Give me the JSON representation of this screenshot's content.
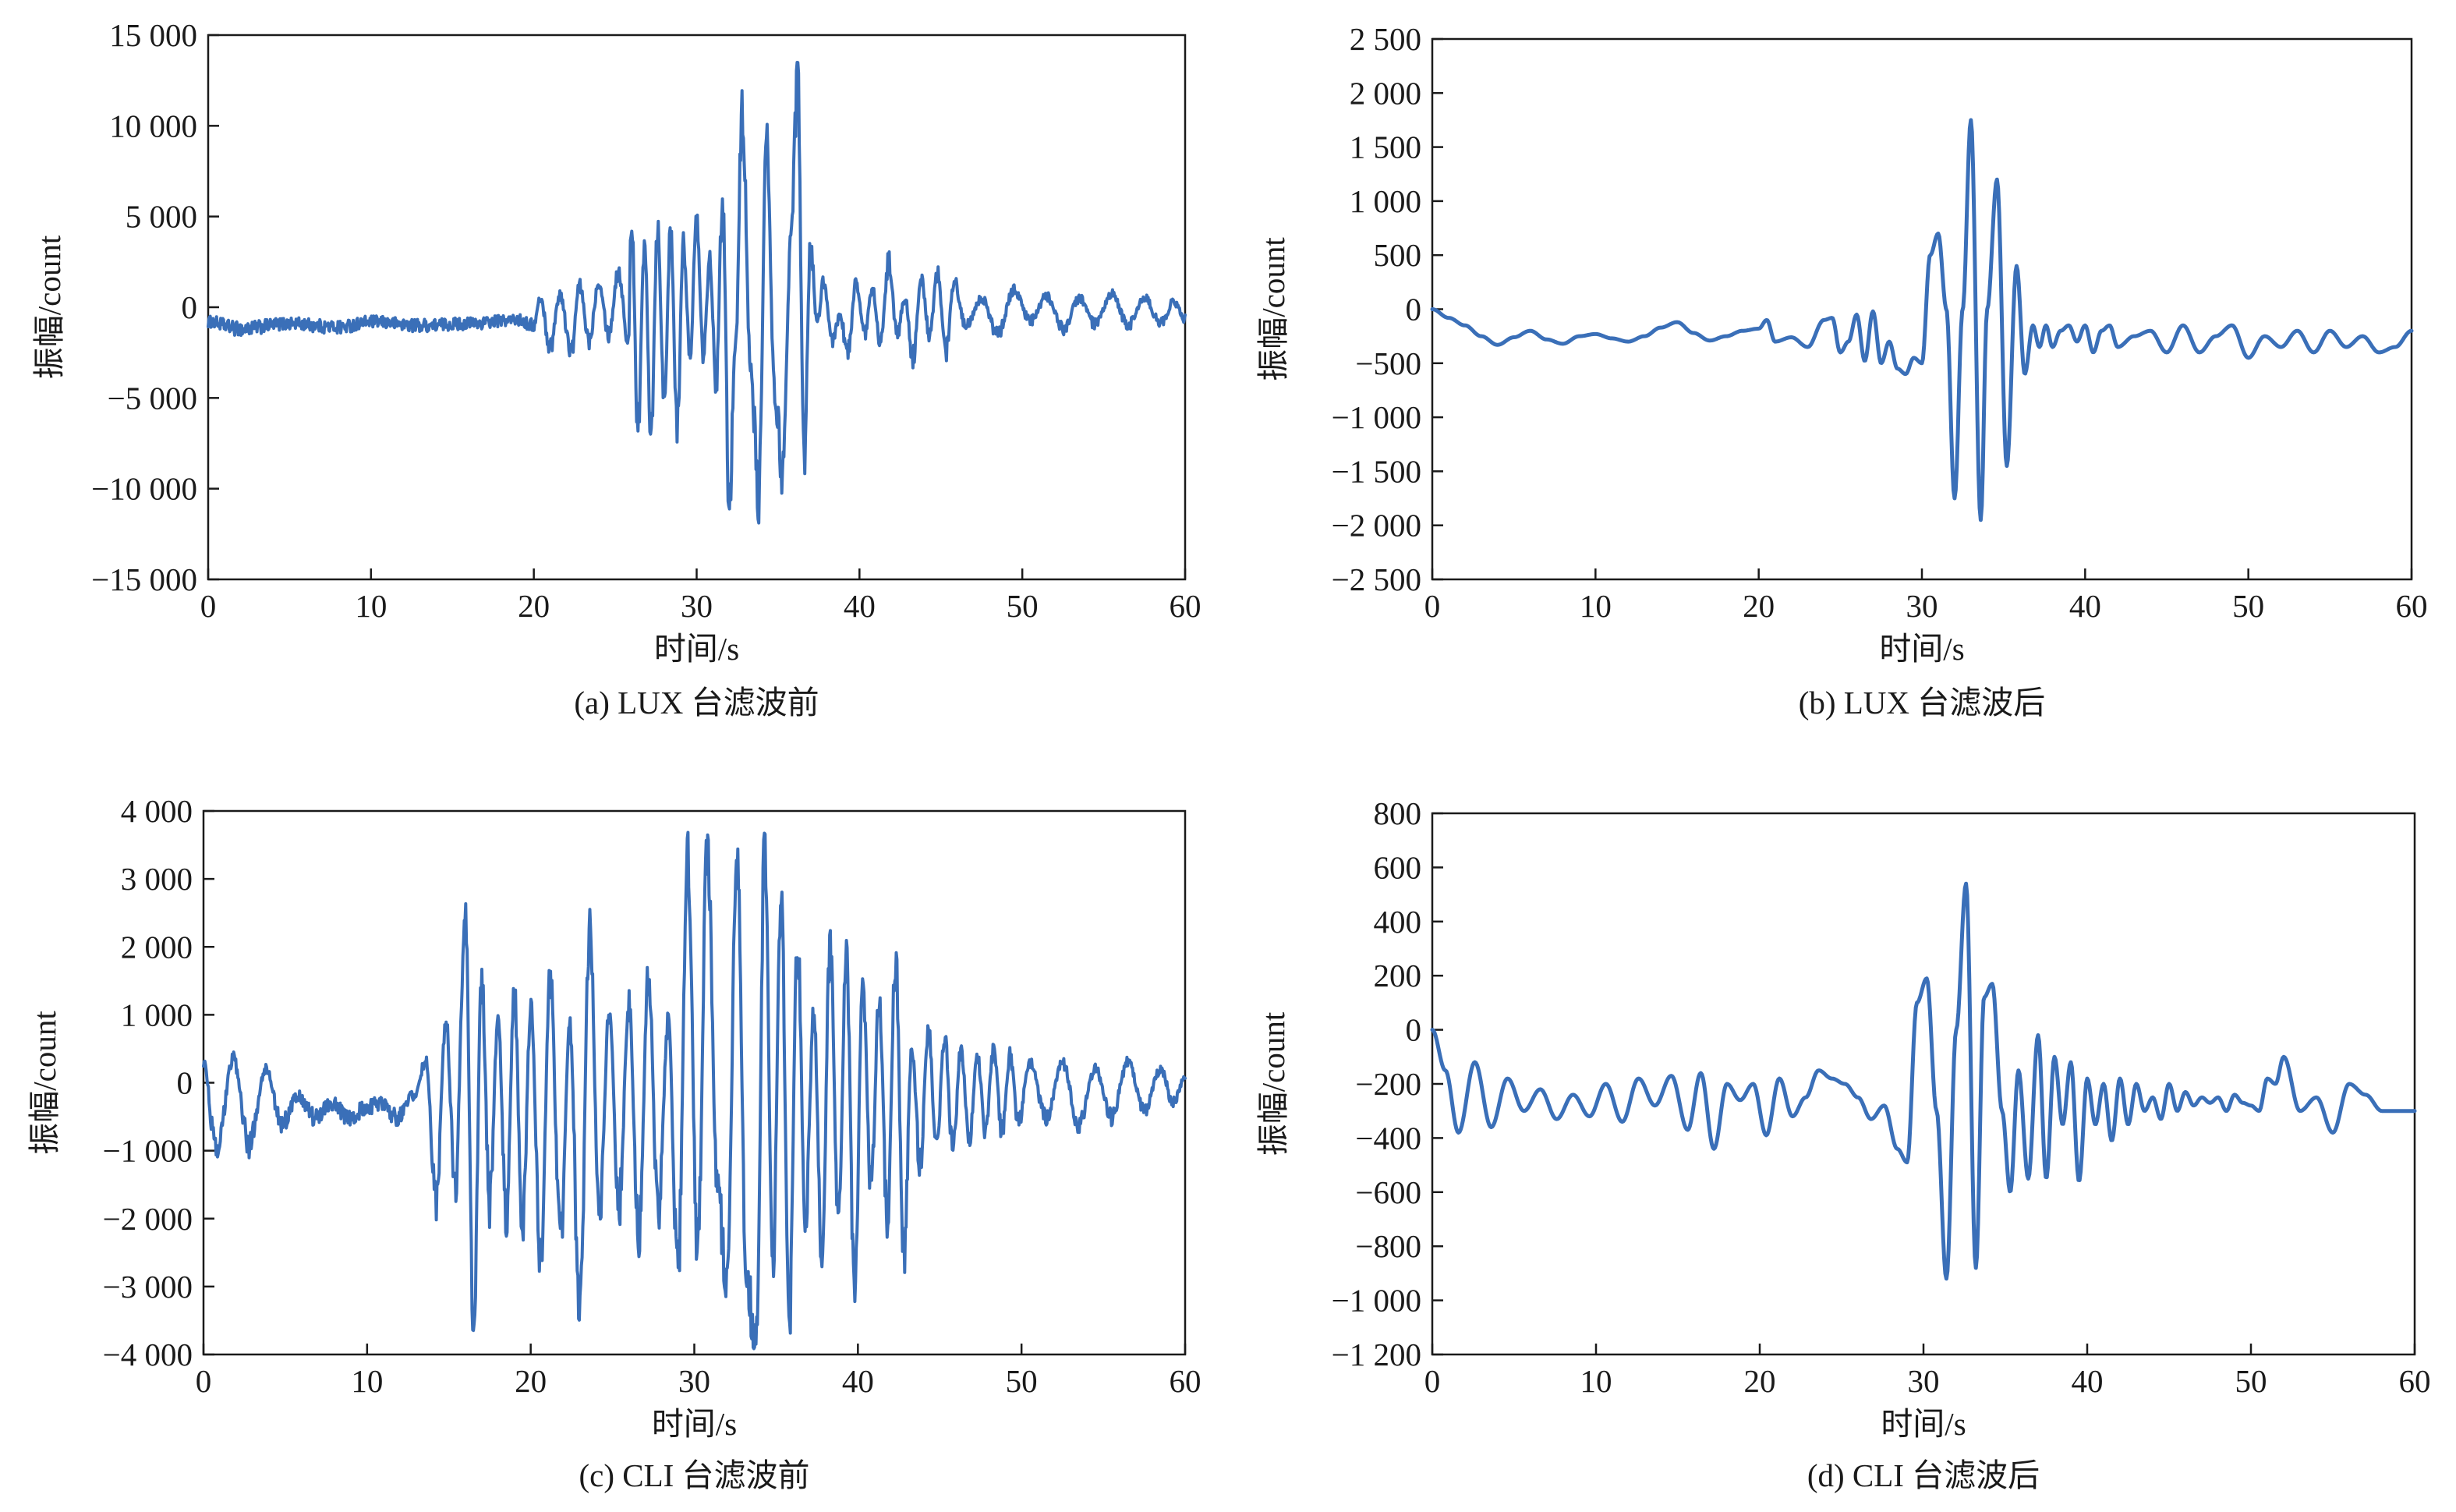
{
  "colors": {
    "trace": "#3a6fb8",
    "axis": "#1a1a1a"
  },
  "chart_data": [
    {
      "type": "line",
      "id": "a",
      "caption": "(a) LUX 台滤波前",
      "xlabel": "时间/s",
      "ylabel": "振幅/count",
      "xlim": [
        0,
        60
      ],
      "ylim": [
        -15000,
        15000
      ],
      "xticks": [
        0,
        10,
        20,
        30,
        40,
        50,
        60
      ],
      "xtick_labels": [
        "0",
        "10",
        "20",
        "30",
        "40",
        "50",
        "60"
      ],
      "yticks": [
        15000,
        10000,
        5000,
        0,
        -5000,
        -10000,
        -15000
      ],
      "ytick_labels": [
        "15 000",
        "10 000",
        "5 000",
        "0",
        "−5 000",
        "−10 000",
        "−15 000"
      ],
      "series": [
        {
          "noisy": true,
          "x": [
            0,
            2,
            5,
            8,
            10,
            13,
            16,
            19,
            20,
            20.4,
            21,
            21.6,
            22.3,
            22.8,
            23.4,
            24,
            24.6,
            25.2,
            25.8,
            26,
            26.4,
            26.8,
            27.2,
            27.6,
            28,
            28.4,
            28.8,
            29.2,
            29.6,
            30,
            30.4,
            30.8,
            31.2,
            31.6,
            32,
            32.4,
            32.8,
            33.3,
            33.8,
            34.3,
            34.8,
            35.3,
            35.8,
            36.2,
            36.6,
            37,
            37.4,
            37.8,
            38.3,
            38.8,
            39.3,
            39.8,
            40.3,
            40.8,
            41.3,
            41.8,
            42.3,
            42.8,
            43.3,
            43.8,
            44.3,
            44.8,
            45.3,
            45.8,
            46.5,
            47.5,
            48.5,
            49.5,
            50.5,
            51.5,
            52.5,
            53.5,
            54.5,
            55.5,
            56.5,
            57.5,
            58.5,
            59.3,
            60
          ],
          "y": [
            -800,
            -1200,
            -900,
            -1100,
            -800,
            -1000,
            -900,
            -700,
            -1000,
            500,
            -2200,
            700,
            -2500,
            1200,
            -1800,
            1500,
            -1500,
            2000,
            -2000,
            5000,
            -6500,
            3500,
            -6700,
            4500,
            -5000,
            4000,
            -6500,
            3500,
            -3000,
            5500,
            -2500,
            2500,
            -4000,
            6000,
            -10500,
            -2000,
            11000,
            -3000,
            -10500,
            9000,
            -5000,
            -9000,
            4000,
            12500,
            -8000,
            3500,
            -1000,
            1500,
            -2000,
            -500,
            -2500,
            1500,
            -1500,
            1000,
            -2000,
            2500,
            -1500,
            500,
            -2800,
            1500,
            -1500,
            1800,
            -2500,
            1500,
            -1000,
            500,
            -1500,
            1000,
            -800,
            600,
            -1200,
            500,
            -1000,
            700,
            -1000,
            500,
            -900,
            300,
            -700
          ]
        }
      ]
    },
    {
      "type": "line",
      "id": "b",
      "caption": "(b) LUX 台滤波后",
      "xlabel": "时间/s",
      "ylabel": "振幅/count",
      "xlim": [
        0,
        60
      ],
      "ylim": [
        -2500,
        2500
      ],
      "xticks": [
        0,
        10,
        20,
        30,
        40,
        50,
        60
      ],
      "xtick_labels": [
        "0",
        "10",
        "20",
        "30",
        "40",
        "50",
        "60"
      ],
      "yticks": [
        2500,
        2000,
        1500,
        1000,
        500,
        0,
        -500,
        -1000,
        -1500,
        -2000,
        -2500
      ],
      "ytick_labels": [
        "2 500",
        "2 000",
        "1 500",
        "1 000",
        "500",
        "0",
        "−500",
        "−1 000",
        "−1 500",
        "−2 000",
        "−2 500"
      ],
      "series": [
        {
          "noisy": false,
          "x": [
            0,
            1,
            2,
            3,
            4,
            5,
            6,
            7,
            8,
            9,
            10,
            11,
            12,
            13,
            14,
            15,
            16,
            17,
            18,
            19,
            20,
            20.5,
            21,
            22,
            23,
            24,
            24.5,
            25,
            25.5,
            26,
            26.5,
            27,
            27.5,
            28,
            28.5,
            29,
            29.5,
            30,
            30.5,
            31,
            31.5,
            32,
            32.5,
            33,
            33.6,
            34,
            34.6,
            35.2,
            35.8,
            36.3,
            36.8,
            37.2,
            37.6,
            38,
            38.5,
            39,
            39.5,
            40,
            40.5,
            41,
            41.5,
            42,
            43,
            44,
            45,
            46,
            47,
            48,
            49,
            50,
            51,
            52,
            53,
            54,
            55,
            56,
            57,
            58,
            59,
            60
          ],
          "y": [
            0,
            -80,
            -150,
            -250,
            -330,
            -260,
            -200,
            -280,
            -320,
            -250,
            -230,
            -270,
            -300,
            -250,
            -170,
            -120,
            -220,
            -290,
            -250,
            -200,
            -180,
            -100,
            -300,
            -260,
            -350,
            -100,
            -80,
            -400,
            -300,
            -50,
            -480,
            -20,
            -500,
            -300,
            -550,
            -600,
            -450,
            -500,
            500,
            700,
            0,
            -1750,
            0,
            1750,
            -1950,
            0,
            1200,
            -1450,
            400,
            -600,
            -150,
            -350,
            -150,
            -350,
            -200,
            -150,
            -300,
            -150,
            -400,
            -200,
            -150,
            -350,
            -250,
            -200,
            -400,
            -150,
            -400,
            -250,
            -150,
            -450,
            -250,
            -350,
            -200,
            -400,
            -200,
            -350,
            -250,
            -400,
            -350,
            -200
          ]
        }
      ]
    },
    {
      "type": "line",
      "id": "c",
      "caption": "(c) CLI 台滤波前",
      "xlabel": "时间/s",
      "ylabel": "振幅/count",
      "xlim": [
        0,
        60
      ],
      "ylim": [
        -4000,
        4000
      ],
      "xticks": [
        0,
        10,
        20,
        30,
        40,
        50,
        60
      ],
      "xtick_labels": [
        "0",
        "10",
        "20",
        "30",
        "40",
        "50",
        "60"
      ],
      "yticks": [
        4000,
        3000,
        2000,
        1000,
        0,
        -1000,
        -2000,
        -3000,
        -4000
      ],
      "ytick_labels": [
        "4 000",
        "3 000",
        "2 000",
        "1 000",
        "0",
        "−1 000",
        "−2 000",
        "−3 000",
        "−4 000"
      ],
      "series": [
        {
          "noisy": true,
          "x": [
            0,
            0.8,
            1.8,
            2.8,
            3.8,
            4.8,
            5.8,
            6.8,
            7.8,
            8.8,
            9.8,
            10.8,
            11.8,
            12.8,
            13.6,
            14.2,
            14.8,
            15.4,
            16,
            16.5,
            17,
            17.5,
            18,
            18.5,
            19,
            19.5,
            20,
            20.6,
            21.2,
            21.8,
            22.4,
            23,
            23.6,
            24.2,
            24.8,
            25.4,
            26,
            26.6,
            27.2,
            27.8,
            28.4,
            29,
            29.6,
            30.2,
            30.8,
            31.4,
            32,
            32.6,
            33.2,
            33.8,
            34.3,
            34.8,
            35.3,
            35.8,
            36.3,
            36.8,
            37.3,
            37.8,
            38.3,
            38.8,
            39.3,
            39.8,
            40.3,
            40.8,
            41.3,
            41.8,
            42.3,
            42.8,
            43.3,
            43.8,
            44.3,
            44.8,
            45.3,
            45.8,
            46.3,
            46.8,
            47.3,
            47.8,
            48.3,
            48.8,
            49.3,
            49.8,
            50.5,
            51.5,
            52.5,
            53.5,
            54.5,
            55.5,
            56.5,
            57.5,
            58.5,
            59.3,
            60
          ],
          "y": [
            300,
            -1050,
            350,
            -900,
            200,
            -600,
            -200,
            -500,
            -300,
            -500,
            -400,
            -300,
            -500,
            -200,
            300,
            -1800,
            900,
            -1500,
            2700,
            -3700,
            1500,
            -1800,
            1000,
            -2000,
            1300,
            -2200,
            1100,
            -2500,
            1500,
            -2300,
            800,
            -3400,
            2300,
            -2000,
            1000,
            -1800,
            1200,
            -2300,
            1600,
            -2000,
            900,
            -2800,
            3400,
            -2500,
            3400,
            -1500,
            -3000,
            3400,
            -3000,
            -3800,
            3500,
            -2800,
            2800,
            -3600,
            2200,
            -2000,
            1000,
            -2500,
            2000,
            -2000,
            1800,
            -3000,
            1500,
            -1500,
            1200,
            -2000,
            1800,
            -2500,
            500,
            -1200,
            800,
            -1000,
            700,
            -1000,
            500,
            -800,
            400,
            -700,
            500,
            -700,
            400,
            -600,
            300,
            -500,
            300,
            -600,
            200,
            -500,
            300,
            -400,
            200,
            -300,
            100
          ]
        }
      ]
    },
    {
      "type": "line",
      "id": "d",
      "caption": "(d) CLI 台滤波后",
      "xlabel": "时间/s",
      "ylabel": "振幅/count",
      "xlim": [
        0,
        60
      ],
      "ylim": [
        -1200,
        800
      ],
      "xticks": [
        0,
        10,
        20,
        30,
        40,
        50,
        60
      ],
      "xtick_labels": [
        "0",
        "10",
        "20",
        "30",
        "40",
        "50",
        "60"
      ],
      "yticks": [
        800,
        600,
        400,
        200,
        0,
        -200,
        -400,
        -600,
        -800,
        -1000,
        -1200
      ],
      "ytick_labels": [
        "800",
        "600",
        "400",
        "200",
        "0",
        "−200",
        "−400",
        "−600",
        "−800",
        "−1 000",
        "−1 200"
      ],
      "series": [
        {
          "noisy": false,
          "x": [
            0,
            0.8,
            1.6,
            2.6,
            3.6,
            4.6,
            5.6,
            6.6,
            7.6,
            8.6,
            9.6,
            10.6,
            11.6,
            12.6,
            13.6,
            14.6,
            15.6,
            16.4,
            17.2,
            18,
            18.8,
            19.6,
            20.4,
            21.2,
            22,
            22.8,
            23.6,
            24.4,
            25.2,
            26,
            26.8,
            27.6,
            28.4,
            29,
            29.6,
            30.2,
            30.8,
            31.4,
            32,
            32.6,
            33.2,
            33.7,
            34.2,
            34.8,
            35.3,
            35.8,
            36.4,
            37,
            37.5,
            38,
            38.5,
            39,
            39.5,
            40,
            40.5,
            41,
            41.5,
            42,
            42.5,
            43,
            43.5,
            44,
            44.5,
            45,
            45.5,
            46,
            46.5,
            47,
            47.5,
            48,
            48.5,
            49,
            49.5,
            50,
            50.5,
            51,
            51.5,
            52,
            53,
            54,
            55,
            56,
            57,
            58,
            59,
            60
          ],
          "y": [
            0,
            -150,
            -380,
            -120,
            -360,
            -180,
            -300,
            -220,
            -330,
            -240,
            -320,
            -200,
            -340,
            -180,
            -280,
            -170,
            -370,
            -160,
            -440,
            -200,
            -260,
            -200,
            -390,
            -180,
            -320,
            -250,
            -150,
            -180,
            -200,
            -250,
            -330,
            -280,
            -440,
            -490,
            100,
            190,
            -300,
            -920,
            0,
            540,
            -880,
            120,
            170,
            -300,
            -600,
            -150,
            -550,
            -20,
            -550,
            -100,
            -350,
            -120,
            -560,
            -180,
            -350,
            -200,
            -410,
            -180,
            -350,
            -200,
            -300,
            -250,
            -330,
            -200,
            -300,
            -230,
            -280,
            -250,
            -270,
            -250,
            -300,
            -240,
            -270,
            -280,
            -300,
            -180,
            -200,
            -100,
            -300,
            -250,
            -380,
            -200,
            -240,
            -300,
            -300,
            -300
          ]
        }
      ]
    }
  ]
}
